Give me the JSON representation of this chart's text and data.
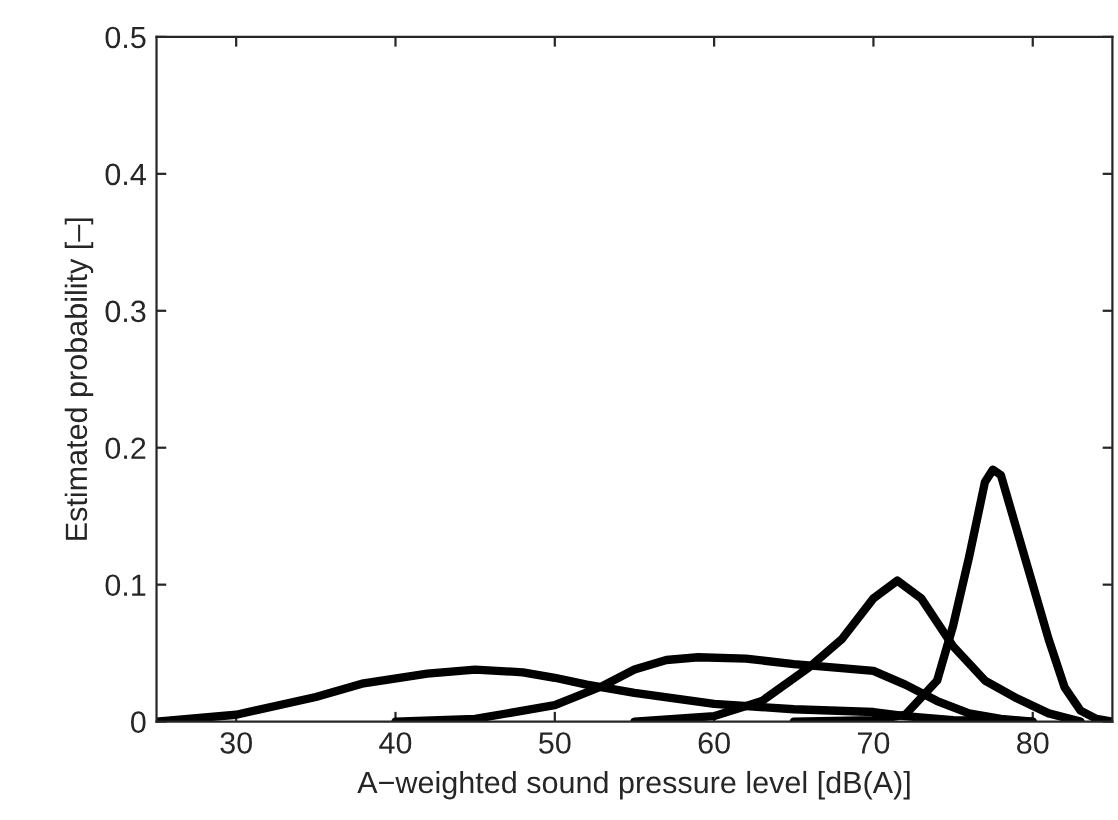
{
  "chart_data": {
    "type": "line",
    "xlabel": "A−weighted sound pressure level [dB(A)]",
    "ylabel": "Estimated probability [–]",
    "xlim": [
      25,
      85
    ],
    "xticks": [
      30,
      40,
      50,
      60,
      70,
      80
    ],
    "ylim": [
      0,
      0.5
    ],
    "yticks": [
      0,
      0.1,
      0.2,
      0.3,
      0.4,
      0.5
    ],
    "grid": false,
    "legend": false,
    "series": [
      {
        "color": "#000000",
        "x": [
          25,
          30,
          35,
          38,
          42,
          45,
          48,
          50,
          52,
          55,
          60,
          65,
          70,
          72,
          75,
          80
        ],
        "values": [
          0,
          0.005,
          0.018,
          0.028,
          0.035,
          0.038,
          0.036,
          0.032,
          0.027,
          0.021,
          0.013,
          0.009,
          0.007,
          0.004,
          0.001,
          0
        ]
      },
      {
        "color": "#000000",
        "x": [
          40,
          45,
          50,
          53,
          55,
          57,
          59,
          62,
          65,
          68,
          70,
          72,
          74,
          76,
          78,
          80
        ],
        "values": [
          0,
          0.002,
          0.012,
          0.026,
          0.038,
          0.045,
          0.047,
          0.046,
          0.042,
          0.039,
          0.037,
          0.027,
          0.015,
          0.006,
          0.002,
          0
        ]
      },
      {
        "color": "#000000",
        "x": [
          55,
          60,
          63,
          66,
          68,
          70,
          71.5,
          73,
          75,
          77,
          79,
          81,
          83
        ],
        "values": [
          0,
          0.004,
          0.015,
          0.04,
          0.06,
          0.09,
          0.103,
          0.09,
          0.055,
          0.03,
          0.017,
          0.006,
          0
        ]
      },
      {
        "color": "#000000",
        "x": [
          65,
          70,
          72,
          74,
          75,
          76,
          77,
          77.5,
          78,
          79,
          80,
          81,
          82,
          83,
          84,
          85
        ],
        "values": [
          0,
          0.001,
          0.005,
          0.03,
          0.07,
          0.12,
          0.175,
          0.184,
          0.18,
          0.14,
          0.1,
          0.06,
          0.025,
          0.008,
          0.002,
          0
        ]
      }
    ]
  }
}
